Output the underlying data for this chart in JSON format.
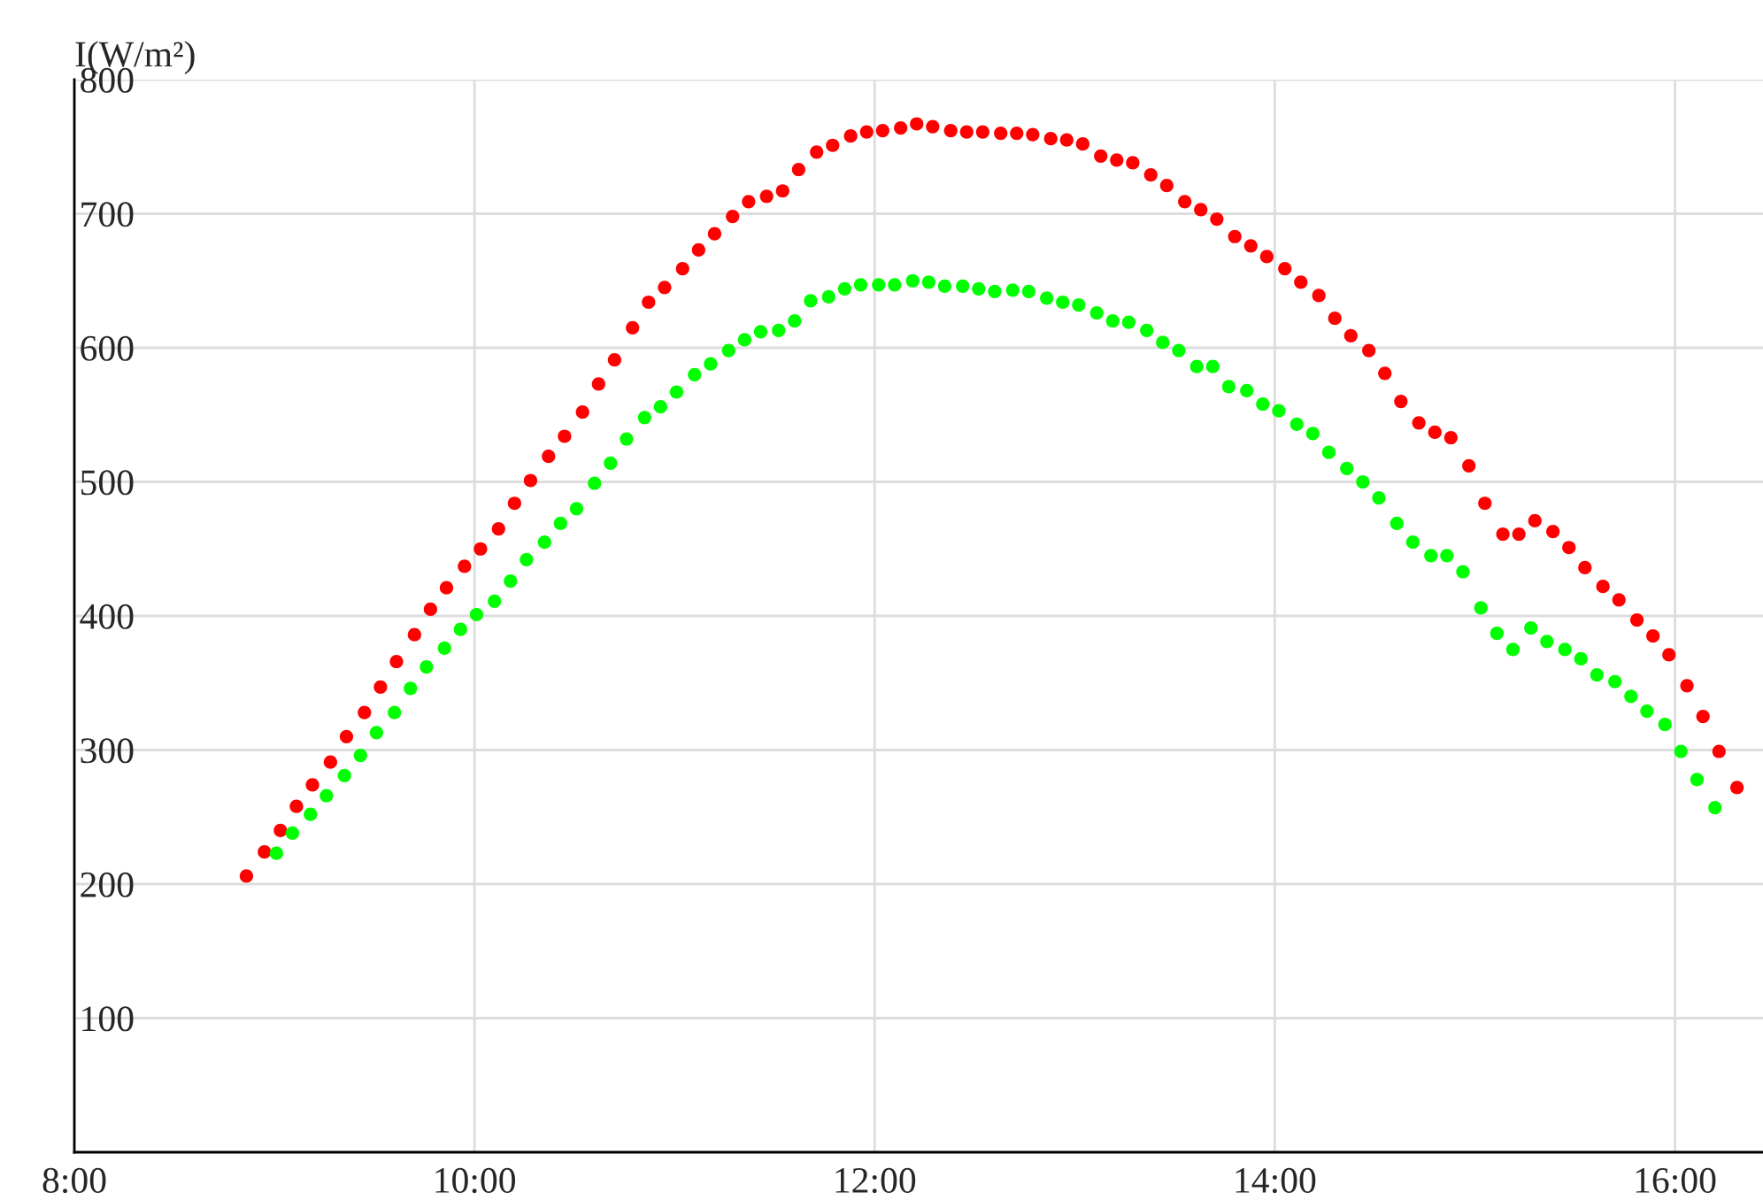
{
  "chart_data": {
    "type": "scatter",
    "ylabel": "I(W/m²)",
    "marker": "circle",
    "grid": true,
    "legend": false,
    "xlim": [
      8,
      16.44
    ],
    "xticks": [
      {
        "value": 8,
        "label": "8:00"
      },
      {
        "value": 10,
        "label": "10:00"
      },
      {
        "value": 12,
        "label": "12:00"
      },
      {
        "value": 14,
        "label": "14:00"
      },
      {
        "value": 16,
        "label": "16:00"
      }
    ],
    "ylim": [
      0,
      800
    ],
    "yticks": [
      100,
      200,
      300,
      400,
      500,
      600,
      700,
      800
    ],
    "series": [
      {
        "color": "#ff0000",
        "x": [
          8.86,
          8.95,
          9.03,
          9.11,
          9.19,
          9.28,
          9.36,
          9.45,
          9.53,
          9.61,
          9.7,
          9.78,
          9.86,
          9.95,
          10.03,
          10.12,
          10.2,
          10.28,
          10.37,
          10.45,
          10.54,
          10.62,
          10.7,
          10.79,
          10.87,
          10.95,
          11.04,
          11.12,
          11.2,
          11.29,
          11.37,
          11.46,
          11.54,
          11.62,
          11.71,
          11.79,
          11.88,
          11.96,
          12.04,
          12.13,
          12.21,
          12.29,
          12.38,
          12.46,
          12.54,
          12.63,
          12.71,
          12.79,
          12.88,
          12.96,
          13.04,
          13.13,
          13.21,
          13.29,
          13.38,
          13.46,
          13.55,
          13.63,
          13.71,
          13.8,
          13.88,
          13.96,
          14.05,
          14.13,
          14.22,
          14.3,
          14.38,
          14.47,
          14.55,
          14.63,
          14.72,
          14.8,
          14.88,
          14.97,
          15.05,
          15.14,
          15.22,
          15.3,
          15.39,
          15.47,
          15.55,
          15.64,
          15.72,
          15.81,
          15.89,
          15.97,
          16.06,
          16.14,
          16.22,
          16.31
        ],
        "values": [
          206,
          224,
          240,
          258,
          274,
          291,
          310,
          328,
          347,
          366,
          386,
          405,
          421,
          437,
          450,
          465,
          484,
          501,
          519,
          534,
          552,
          573,
          591,
          615,
          634,
          645,
          659,
          673,
          685,
          698,
          709,
          713,
          717,
          733,
          746,
          751,
          758,
          761,
          762,
          764,
          767,
          765,
          762,
          761,
          761,
          760,
          760,
          759,
          756,
          755,
          752,
          743,
          740,
          738,
          729,
          721,
          709,
          703,
          696,
          683,
          676,
          668,
          659,
          649,
          639,
          622,
          609,
          598,
          581,
          560,
          544,
          537,
          533,
          512,
          484,
          461,
          461,
          471,
          463,
          451,
          436,
          422,
          412,
          397,
          385,
          371,
          348,
          325,
          299,
          272
        ]
      },
      {
        "color": "#00ff00",
        "x": [
          9.01,
          9.09,
          9.18,
          9.26,
          9.35,
          9.43,
          9.51,
          9.6,
          9.68,
          9.76,
          9.85,
          9.93,
          10.01,
          10.1,
          10.18,
          10.26,
          10.35,
          10.43,
          10.51,
          10.6,
          10.68,
          10.76,
          10.85,
          10.93,
          11.01,
          11.1,
          11.18,
          11.27,
          11.35,
          11.43,
          11.52,
          11.6,
          11.68,
          11.77,
          11.85,
          11.93,
          12.02,
          12.1,
          12.19,
          12.27,
          12.35,
          12.44,
          12.52,
          12.6,
          12.69,
          12.77,
          12.86,
          12.94,
          13.02,
          13.11,
          13.19,
          13.27,
          13.36,
          13.44,
          13.52,
          13.61,
          13.69,
          13.77,
          13.86,
          13.94,
          14.02,
          14.11,
          14.19,
          14.27,
          14.36,
          14.44,
          14.52,
          14.61,
          14.69,
          14.78,
          14.86,
          14.94,
          15.03,
          15.11,
          15.19,
          15.28,
          15.36,
          15.45,
          15.53,
          15.61,
          15.7,
          15.78,
          15.86,
          15.95,
          16.03,
          16.11,
          16.2
        ],
        "values": [
          223,
          238,
          252,
          266,
          281,
          296,
          313,
          328,
          346,
          362,
          376,
          390,
          401,
          411,
          426,
          442,
          455,
          469,
          480,
          499,
          514,
          532,
          548,
          556,
          567,
          580,
          588,
          598,
          606,
          612,
          613,
          620,
          635,
          638,
          644,
          647,
          647,
          647,
          650,
          649,
          646,
          646,
          644,
          642,
          643,
          642,
          637,
          634,
          632,
          626,
          620,
          619,
          613,
          604,
          598,
          586,
          586,
          571,
          568,
          558,
          553,
          543,
          536,
          522,
          510,
          500,
          488,
          469,
          455,
          445,
          445,
          433,
          406,
          387,
          375,
          391,
          381,
          375,
          368,
          356,
          351,
          340,
          329,
          319,
          299,
          278,
          257
        ]
      }
    ]
  }
}
